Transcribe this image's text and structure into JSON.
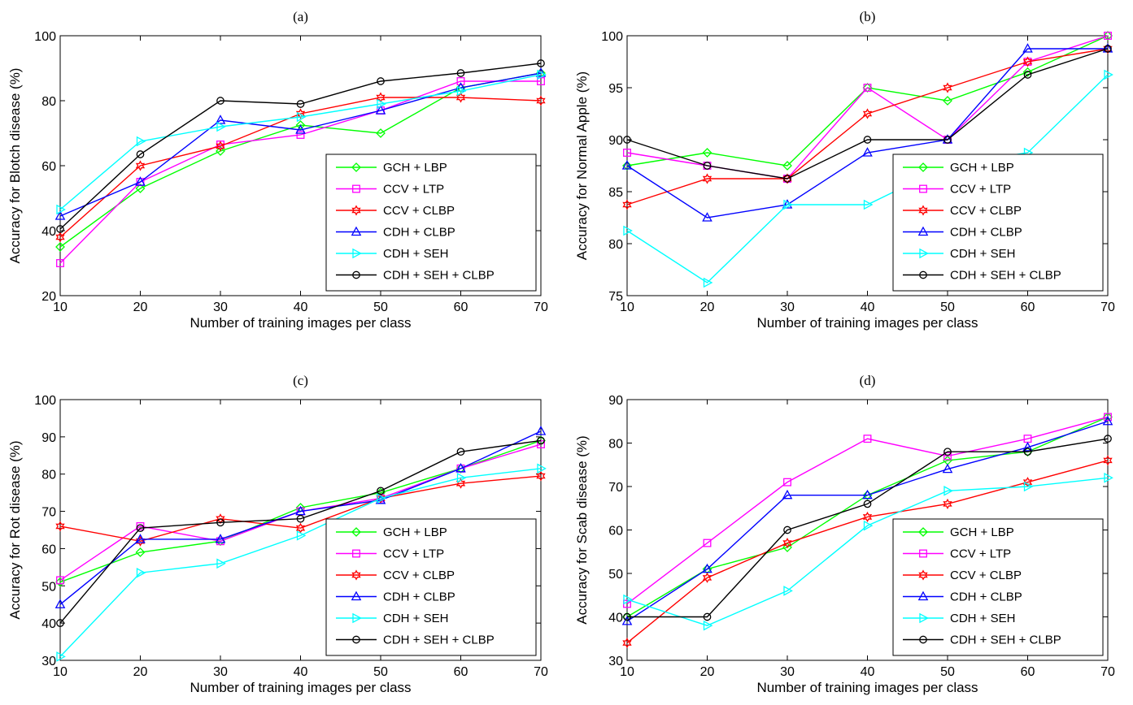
{
  "chart_data": [
    {
      "type": "line",
      "title": "(a)",
      "xlabel": "Number of training images per class",
      "ylabel": "Accuracy for Blotch disease (%)",
      "x": [
        10,
        20,
        30,
        40,
        50,
        60,
        70
      ],
      "xticks": [
        10,
        20,
        30,
        40,
        50,
        60,
        70
      ],
      "xlim": [
        10,
        70
      ],
      "yticks": [
        20,
        40,
        60,
        80,
        100
      ],
      "ylim": [
        20,
        100
      ],
      "grid": false,
      "legend": "bottom-right",
      "series": [
        {
          "name": "GCH + LBP",
          "color": "#00ff00",
          "marker": "diamond",
          "values": [
            35,
            53,
            64.5,
            72.5,
            70,
            84,
            88.5
          ]
        },
        {
          "name": "CCV + LTP",
          "color": "#ff00ff",
          "marker": "square",
          "values": [
            30,
            55,
            66.5,
            69.5,
            77,
            86,
            86
          ]
        },
        {
          "name": "CCV + CLBP",
          "color": "#ff0000",
          "marker": "hexagram",
          "values": [
            38,
            60,
            66,
            76,
            81,
            81,
            80
          ]
        },
        {
          "name": "CDH + CLBP",
          "color": "#0000ff",
          "marker": "triangle-up",
          "values": [
            44.5,
            55,
            74,
            71,
            77,
            84,
            88.5
          ]
        },
        {
          "name": "CDH + SEH",
          "color": "#00ffff",
          "marker": "triangle-right",
          "values": [
            46.5,
            67.5,
            72,
            75,
            79,
            83,
            88
          ]
        },
        {
          "name": "CDH + SEH + CLBP",
          "color": "#000000",
          "marker": "circle",
          "values": [
            40.5,
            63.5,
            80,
            79,
            86,
            88.5,
            91.5
          ]
        }
      ]
    },
    {
      "type": "line",
      "title": "(b)",
      "xlabel": "Number of training images per class",
      "ylabel": "Accuracy for Normal Apple (%)",
      "x": [
        10,
        20,
        30,
        40,
        50,
        60,
        70
      ],
      "xticks": [
        10,
        20,
        30,
        40,
        50,
        60,
        70
      ],
      "xlim": [
        10,
        70
      ],
      "yticks": [
        75,
        80,
        85,
        90,
        95,
        100
      ],
      "ylim": [
        75,
        100
      ],
      "grid": false,
      "legend": "bottom-right",
      "series": [
        {
          "name": "GCH + LBP",
          "color": "#00ff00",
          "marker": "diamond",
          "values": [
            87.5,
            88.75,
            87.5,
            95,
            93.75,
            96.5,
            100
          ]
        },
        {
          "name": "CCV + LTP",
          "color": "#ff00ff",
          "marker": "square",
          "values": [
            88.75,
            87.5,
            86.25,
            95,
            90,
            97.5,
            100
          ]
        },
        {
          "name": "CCV + CLBP",
          "color": "#ff0000",
          "marker": "hexagram",
          "values": [
            83.75,
            86.25,
            86.25,
            92.5,
            95,
            97.5,
            98.75
          ]
        },
        {
          "name": "CDH + CLBP",
          "color": "#0000ff",
          "marker": "triangle-up",
          "values": [
            87.5,
            82.5,
            83.75,
            88.75,
            90,
            98.75,
            98.75
          ]
        },
        {
          "name": "CDH + SEH",
          "color": "#00ffff",
          "marker": "triangle-right",
          "values": [
            81.25,
            76.25,
            83.75,
            83.75,
            87.5,
            88.75,
            96.25
          ]
        },
        {
          "name": "CDH + SEH + CLBP",
          "color": "#000000",
          "marker": "circle",
          "values": [
            90,
            87.5,
            86.25,
            90,
            90,
            96.25,
            98.75
          ]
        }
      ]
    },
    {
      "type": "line",
      "title": "(c)",
      "xlabel": "Number of training images per class",
      "ylabel": "Accuracy for Rot disease (%)",
      "x": [
        10,
        20,
        30,
        40,
        50,
        60,
        70
      ],
      "xticks": [
        10,
        20,
        30,
        40,
        50,
        60,
        70
      ],
      "xlim": [
        10,
        70
      ],
      "yticks": [
        30,
        40,
        50,
        60,
        70,
        80,
        90,
        100
      ],
      "ylim": [
        30,
        100
      ],
      "grid": false,
      "legend": "bottom-right",
      "series": [
        {
          "name": "GCH + LBP",
          "color": "#00ff00",
          "marker": "diamond",
          "values": [
            51,
            59,
            62,
            71,
            75,
            81.5,
            89
          ]
        },
        {
          "name": "CCV + LTP",
          "color": "#ff00ff",
          "marker": "square",
          "values": [
            51.5,
            66,
            62,
            70,
            73.5,
            81.5,
            88
          ]
        },
        {
          "name": "CCV + CLBP",
          "color": "#ff0000",
          "marker": "hexagram",
          "values": [
            66,
            62,
            68,
            65.5,
            73.5,
            77.5,
            79.5
          ]
        },
        {
          "name": "CDH + CLBP",
          "color": "#0000ff",
          "marker": "triangle-up",
          "values": [
            45,
            62.5,
            62.5,
            70,
            73,
            81.5,
            91.5
          ]
        },
        {
          "name": "CDH + SEH",
          "color": "#00ffff",
          "marker": "triangle-right",
          "values": [
            31,
            53.5,
            56,
            63.5,
            73.5,
            79,
            81.5
          ]
        },
        {
          "name": "CDH + SEH + CLBP",
          "color": "#000000",
          "marker": "circle",
          "values": [
            40,
            65.5,
            67,
            68,
            75.5,
            86,
            89
          ]
        }
      ]
    },
    {
      "type": "line",
      "title": "(d)",
      "xlabel": "Number of training images per class",
      "ylabel": "Accuracy for Scab disease (%)",
      "x": [
        10,
        20,
        30,
        40,
        50,
        60,
        70
      ],
      "xticks": [
        10,
        20,
        30,
        40,
        50,
        60,
        70
      ],
      "xlim": [
        10,
        70
      ],
      "yticks": [
        30,
        40,
        50,
        60,
        70,
        80,
        90
      ],
      "ylim": [
        30,
        90
      ],
      "grid": false,
      "legend": "bottom-right",
      "series": [
        {
          "name": "GCH + LBP",
          "color": "#00ff00",
          "marker": "diamond",
          "values": [
            40,
            51,
            56,
            68,
            76,
            78,
            86
          ]
        },
        {
          "name": "CCV + LTP",
          "color": "#ff00ff",
          "marker": "square",
          "values": [
            43,
            57,
            71,
            81,
            77,
            81,
            86
          ]
        },
        {
          "name": "CCV + CLBP",
          "color": "#ff0000",
          "marker": "hexagram",
          "values": [
            34,
            49,
            57,
            63,
            66,
            71,
            76
          ]
        },
        {
          "name": "CDH + CLBP",
          "color": "#0000ff",
          "marker": "triangle-up",
          "values": [
            39,
            51,
            68,
            68,
            74,
            79,
            85
          ]
        },
        {
          "name": "CDH + SEH",
          "color": "#00ffff",
          "marker": "triangle-right",
          "values": [
            44,
            38,
            46,
            61,
            69,
            70,
            72
          ]
        },
        {
          "name": "CDH + SEH + CLBP",
          "color": "#000000",
          "marker": "circle",
          "values": [
            40,
            40,
            60,
            66,
            78,
            78,
            81
          ]
        }
      ]
    }
  ]
}
